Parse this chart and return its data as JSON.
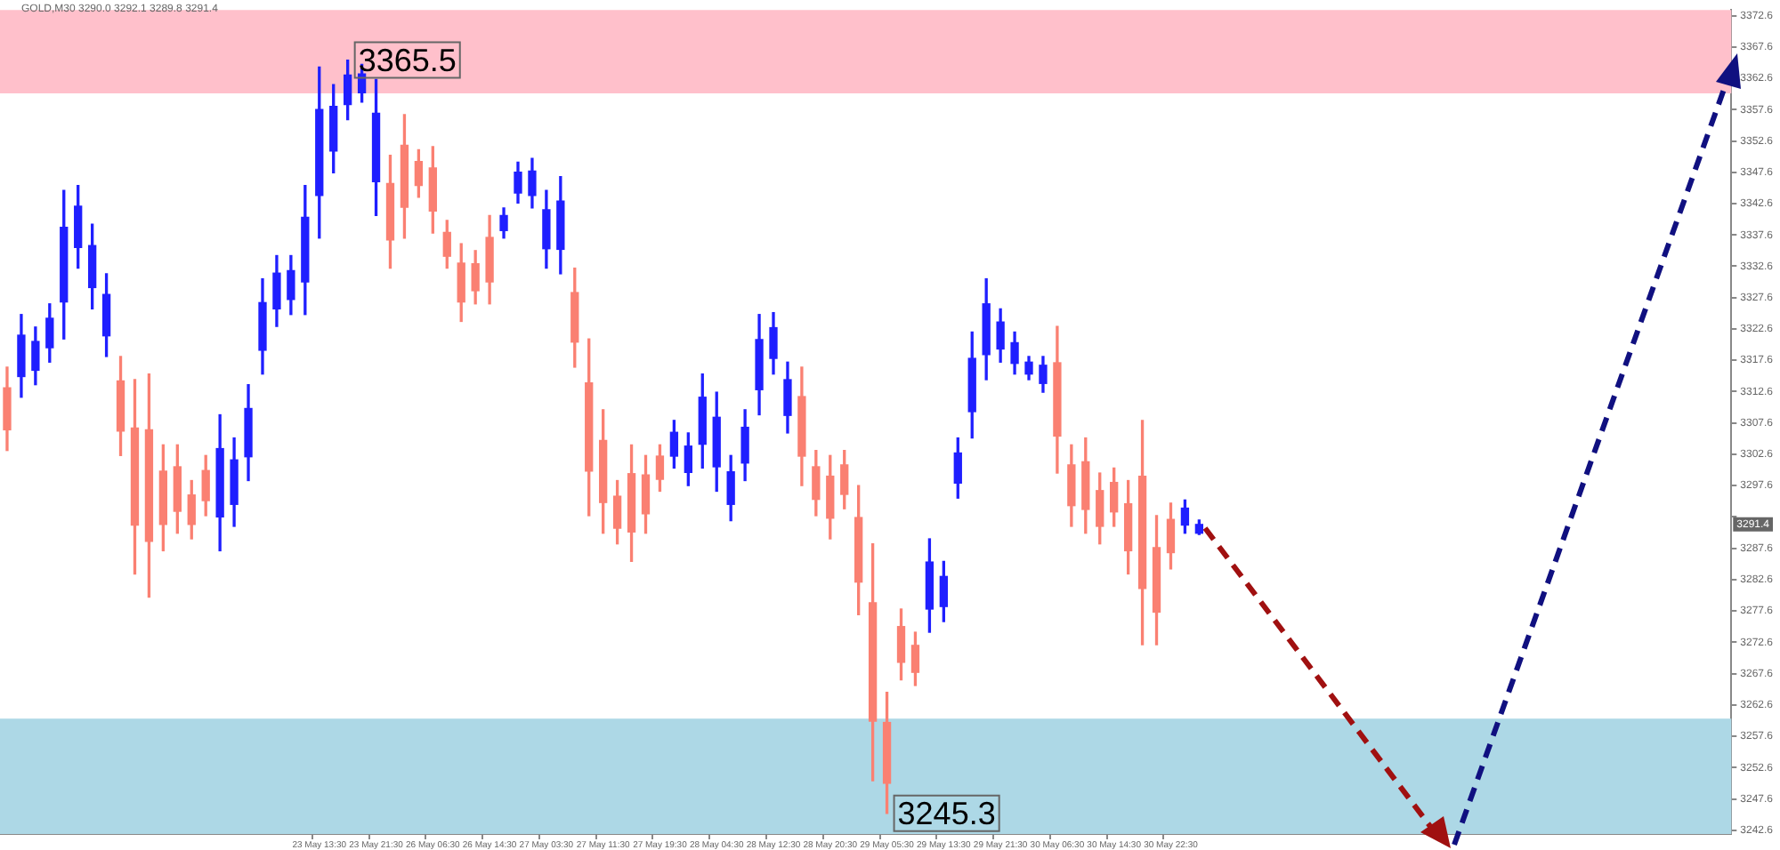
{
  "chart_data": {
    "type": "candlestick",
    "title": "GOLD,M30 3290.0 3292.1 3289.8 3291.4",
    "categories": [
      null,
      null,
      null,
      null,
      null,
      null,
      null,
      null,
      null,
      null,
      null,
      null,
      null,
      null,
      null,
      null,
      null,
      null,
      null,
      null,
      null,
      null,
      "23 May 13:30",
      null,
      null,
      null,
      "23 May 21:30",
      null,
      null,
      null,
      "26 May 06:30",
      null,
      null,
      null,
      "26 May 14:30",
      null,
      null,
      null,
      "27 May 03:30",
      null,
      null,
      null,
      "27 May 11:30",
      null,
      null,
      null,
      "27 May 19:30",
      null,
      null,
      null,
      "28 May 04:30",
      null,
      null,
      null,
      "28 May 12:30",
      null,
      null,
      null,
      "28 May 20:30",
      null,
      null,
      null,
      "29 May 05:30",
      null,
      null,
      null,
      "29 May 13:30",
      null,
      null,
      null,
      "29 May 21:30",
      null,
      null,
      null,
      "30 May 06:30",
      null,
      null,
      null,
      "30 May 14:30",
      null,
      null,
      null,
      "30 May 22:30",
      null,
      null,
      null,
      null,
      null,
      null,
      null,
      null,
      null,
      null,
      null,
      null,
      null,
      null,
      null,
      null,
      null,
      null,
      null,
      null,
      null,
      null,
      null,
      null,
      null,
      null,
      null,
      null,
      null,
      null,
      null,
      null,
      null,
      null,
      null,
      null,
      null,
      null,
      null
    ],
    "ohlc": [
      [
        3313.2,
        3316.5,
        3303.2,
        3306.5
      ],
      [
        3315.0,
        3324.9,
        3311.7,
        3321.6
      ],
      [
        3316.0,
        3322.9,
        3313.7,
        3320.6
      ],
      [
        3319.6,
        3326.6,
        3317.3,
        3324.3
      ],
      [
        3326.9,
        3344.7,
        3321.0,
        3338.8
      ],
      [
        3335.6,
        3345.5,
        3332.3,
        3342.2
      ],
      [
        3329.2,
        3339.3,
        3325.8,
        3335.9
      ],
      [
        3321.5,
        3331.4,
        3318.2,
        3328.1
      ],
      [
        3314.3,
        3318.2,
        3302.4,
        3306.3
      ],
      [
        3306.8,
        3314.5,
        3283.5,
        3291.3
      ],
      [
        3306.5,
        3315.4,
        3279.8,
        3288.7
      ],
      [
        3299.9,
        3304.1,
        3287.2,
        3291.4
      ],
      [
        3300.6,
        3304.1,
        3290.0,
        3293.5
      ],
      [
        3296.1,
        3298.4,
        3289.1,
        3291.4
      ],
      [
        3300.0,
        3302.4,
        3292.8,
        3295.2
      ],
      [
        3292.6,
        3308.9,
        3287.2,
        3303.5
      ],
      [
        3294.6,
        3305.2,
        3291.1,
        3301.7
      ],
      [
        3302.2,
        3313.7,
        3298.4,
        3309.9
      ],
      [
        3319.2,
        3330.6,
        3315.4,
        3326.8
      ],
      [
        3325.8,
        3334.3,
        3323.0,
        3331.5
      ],
      [
        3327.3,
        3334.3,
        3324.9,
        3331.9
      ],
      [
        3330.1,
        3345.5,
        3324.9,
        3340.4
      ],
      [
        3343.9,
        3364.4,
        3337.1,
        3357.6
      ],
      [
        3351.0,
        3361.6,
        3347.5,
        3358.1
      ],
      [
        3358.4,
        3365.5,
        3356.0,
        3363.1
      ],
      [
        3360.3,
        3364.8,
        3358.8,
        3363.3
      ],
      [
        3346.1,
        3362.4,
        3340.7,
        3357.0
      ],
      [
        3345.8,
        3350.3,
        3332.3,
        3336.8
      ],
      [
        3351.9,
        3356.8,
        3337.1,
        3342.0
      ],
      [
        3349.3,
        3351.2,
        3343.6,
        3345.5
      ],
      [
        3348.3,
        3351.7,
        3337.9,
        3341.4
      ],
      [
        3338.0,
        3339.9,
        3332.3,
        3334.2
      ],
      [
        3333.1,
        3336.2,
        3323.8,
        3326.9
      ],
      [
        3333.0,
        3335.1,
        3326.6,
        3328.7
      ],
      [
        3337.2,
        3340.7,
        3326.6,
        3330.1
      ],
      [
        3338.3,
        3341.9,
        3337.1,
        3340.7
      ],
      [
        3344.3,
        3349.2,
        3342.7,
        3347.6
      ],
      [
        3343.9,
        3349.8,
        3341.9,
        3347.8
      ],
      [
        3335.4,
        3344.7,
        3332.3,
        3341.6
      ],
      [
        3335.3,
        3346.9,
        3331.4,
        3343.0
      ],
      [
        3328.4,
        3332.3,
        3316.5,
        3320.5
      ],
      [
        3314.0,
        3321.0,
        3292.8,
        3299.9
      ],
      [
        3304.8,
        3309.7,
        3290.0,
        3294.9
      ],
      [
        3295.9,
        3298.4,
        3288.3,
        3290.8
      ],
      [
        3299.5,
        3304.1,
        3285.5,
        3290.2
      ],
      [
        3299.3,
        3302.4,
        3290.0,
        3293.1
      ],
      [
        3302.3,
        3304.1,
        3296.7,
        3298.6
      ],
      [
        3302.3,
        3308.0,
        3300.4,
        3306.1
      ],
      [
        3299.7,
        3306.0,
        3297.6,
        3303.9
      ],
      [
        3304.2,
        3315.4,
        3300.4,
        3311.7
      ],
      [
        3300.6,
        3312.5,
        3296.7,
        3308.5
      ],
      [
        3294.6,
        3302.4,
        3292.0,
        3299.8
      ],
      [
        3301.2,
        3309.7,
        3298.4,
        3306.9
      ],
      [
        3312.9,
        3324.9,
        3308.9,
        3320.9
      ],
      [
        3317.9,
        3325.2,
        3315.4,
        3322.8
      ],
      [
        3308.8,
        3317.3,
        3306.0,
        3314.5
      ],
      [
        3311.8,
        3316.5,
        3297.6,
        3302.3
      ],
      [
        3300.6,
        3303.2,
        3292.8,
        3295.4
      ],
      [
        3299.1,
        3302.4,
        3289.1,
        3292.4
      ],
      [
        3300.9,
        3303.2,
        3293.9,
        3296.2
      ],
      [
        3292.5,
        3297.6,
        3277.0,
        3282.2
      ],
      [
        3278.9,
        3288.3,
        3250.5,
        3260.0
      ],
      [
        3259.8,
        3264.6,
        3245.3,
        3250.1
      ],
      [
        3275.1,
        3277.9,
        3266.6,
        3269.4
      ],
      [
        3272.1,
        3274.2,
        3265.7,
        3267.8
      ],
      [
        3277.9,
        3289.1,
        3274.2,
        3285.4
      ],
      [
        3278.3,
        3285.5,
        3275.9,
        3283.1
      ],
      [
        3298.0,
        3305.2,
        3295.6,
        3302.8
      ],
      [
        3309.4,
        3322.1,
        3305.2,
        3317.9
      ],
      [
        3318.5,
        3330.6,
        3314.5,
        3326.6
      ],
      [
        3319.4,
        3325.8,
        3317.3,
        3323.7
      ],
      [
        3317.1,
        3322.1,
        3315.4,
        3320.4
      ],
      [
        3315.4,
        3318.2,
        3314.5,
        3317.3
      ],
      [
        3313.9,
        3318.2,
        3312.5,
        3316.8
      ],
      [
        3317.2,
        3323.0,
        3299.6,
        3305.5
      ],
      [
        3300.9,
        3304.1,
        3291.1,
        3294.4
      ],
      [
        3301.4,
        3305.2,
        3290.0,
        3293.8
      ],
      [
        3296.8,
        3299.6,
        3288.3,
        3291.1
      ],
      [
        3298.1,
        3300.4,
        3291.1,
        3293.4
      ],
      [
        3294.7,
        3298.4,
        3283.5,
        3287.2
      ],
      [
        3299.1,
        3308.0,
        3272.2,
        3281.2
      ],
      [
        3287.7,
        3292.8,
        3272.2,
        3277.4
      ],
      [
        3292.2,
        3294.8,
        3284.3,
        3286.9
      ],
      [
        3291.3,
        3295.3,
        3290.0,
        3294.0
      ],
      [
        3290.0,
        3292.1,
        3289.8,
        3291.4
      ],
      null,
      null,
      null,
      null,
      null,
      null,
      null,
      null,
      null,
      null,
      null,
      null,
      null,
      null,
      null,
      null,
      null,
      null,
      null,
      null,
      null,
      null,
      null,
      null,
      null,
      null,
      null,
      null,
      null,
      null,
      null,
      null,
      null,
      null,
      null,
      null,
      null
    ],
    "colors": [
      "#fa8072",
      "#1f1fff",
      "#1f1fff",
      "#1f1fff",
      "#1f1fff",
      "#1f1fff",
      "#1f1fff",
      "#1f1fff",
      "#fa8072",
      "#fa8072",
      "#fa8072",
      "#fa8072",
      "#fa8072",
      "#fa8072",
      "#fa8072",
      "#1f1fff",
      "#1f1fff",
      "#1f1fff",
      "#1f1fff",
      "#1f1fff",
      "#1f1fff",
      "#1f1fff",
      "#1f1fff",
      "#1f1fff",
      "#1f1fff",
      "#1f1fff",
      "#1f1fff",
      "#fa8072",
      "#fa8072",
      "#fa8072",
      "#fa8072",
      "#fa8072",
      "#fa8072",
      "#fa8072",
      "#fa8072",
      "#1f1fff",
      "#1f1fff",
      "#1f1fff",
      "#1f1fff",
      "#1f1fff",
      "#fa8072",
      "#fa8072",
      "#fa8072",
      "#fa8072",
      "#fa8072",
      "#fa8072",
      "#fa8072",
      "#1f1fff",
      "#1f1fff",
      "#1f1fff",
      "#1f1fff",
      "#1f1fff",
      "#1f1fff",
      "#1f1fff",
      "#1f1fff",
      "#1f1fff",
      "#fa8072",
      "#fa8072",
      "#fa8072",
      "#fa8072",
      "#fa8072",
      "#fa8072",
      "#fa8072",
      "#fa8072",
      "#fa8072",
      "#1f1fff",
      "#1f1fff",
      "#1f1fff",
      "#1f1fff",
      "#1f1fff",
      "#1f1fff",
      "#1f1fff",
      "#1f1fff",
      "#1f1fff",
      "#fa8072",
      "#fa8072",
      "#fa8072",
      "#fa8072",
      "#fa8072",
      "#fa8072",
      "#fa8072",
      "#fa8072",
      "#fa8072",
      "#1f1fff",
      "#1f1fff",
      null,
      null,
      null,
      null,
      null,
      null,
      null,
      null,
      null,
      null,
      null,
      null,
      null,
      null,
      null,
      null,
      null,
      null,
      null,
      null,
      null,
      null,
      null,
      null,
      null,
      null,
      null,
      null,
      null,
      null,
      null,
      null,
      null,
      null,
      null,
      null,
      null
    ],
    "ylim": [
      3242,
      3373.5
    ],
    "yticks": [
      3242.6,
      3247.6,
      3252.6,
      3257.6,
      3262.6,
      3267.6,
      3272.6,
      3277.6,
      3282.6,
      3287.6,
      {
        "value": 3292.6,
        "label": null
      },
      3297.6,
      3302.6,
      3307.6,
      3312.6,
      3317.6,
      3322.6,
      3327.6,
      3332.6,
      3337.6,
      3342.6,
      3347.6,
      3352.6,
      3357.6,
      3362.6,
      3367.6,
      3372.6
    ],
    "bands": [
      {
        "axis": "y",
        "from": 3360.2,
        "to": 3373.5,
        "color": "#ffc0cb"
      },
      {
        "axis": "y",
        "from": 3242,
        "to": 3260.4,
        "color": "#add8e6"
      }
    ],
    "annotations": [
      "3365.5",
      "3245.3",
      {
        "text": "3291.4",
        "y": 3291.4
      }
    ]
  }
}
